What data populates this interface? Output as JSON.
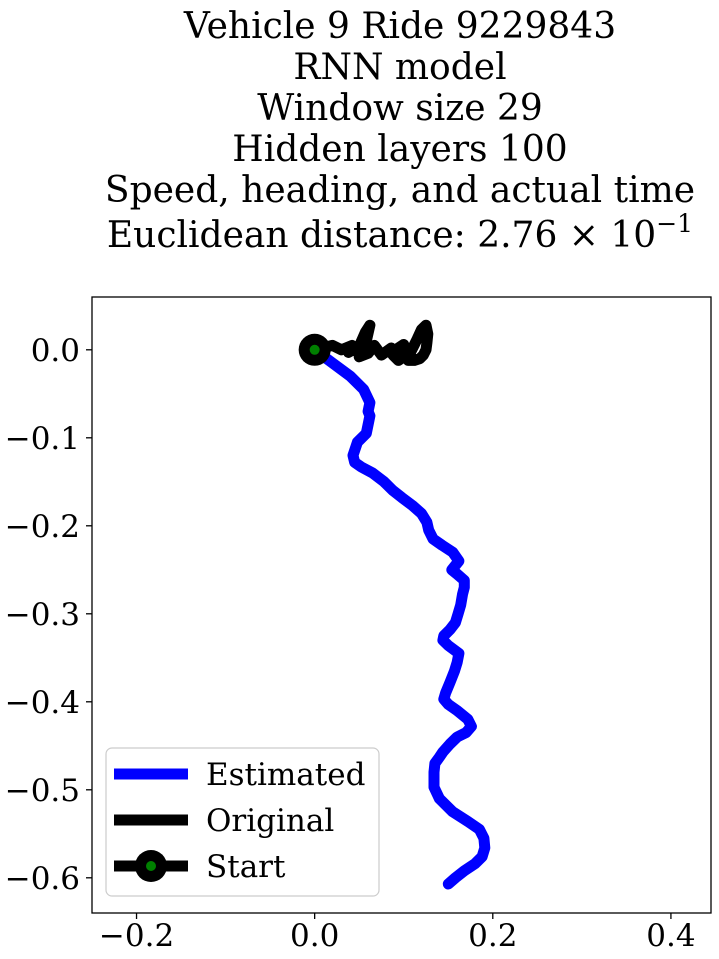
{
  "chart_data": {
    "type": "line",
    "title_lines": [
      "Vehicle 9 Ride 9229843",
      "RNN model",
      "Window size 29",
      "Hidden layers 100",
      "Speed, heading, and actual time"
    ],
    "title_distance": {
      "prefix": "Euclidean distance: 2.76 × 10",
      "exponent": "−1"
    },
    "xlabel": "",
    "ylabel": "",
    "xlim": [
      -0.25,
      0.445
    ],
    "ylim": [
      -0.64,
      0.06
    ],
    "xticks": [
      {
        "value": -0.2,
        "label": "−0.2"
      },
      {
        "value": 0.0,
        "label": "0.0"
      },
      {
        "value": 0.2,
        "label": "0.2"
      },
      {
        "value": 0.4,
        "label": "0.4"
      }
    ],
    "yticks": [
      {
        "value": 0.0,
        "label": "0.0"
      },
      {
        "value": -0.1,
        "label": "−0.1"
      },
      {
        "value": -0.2,
        "label": "−0.2"
      },
      {
        "value": -0.3,
        "label": "−0.3"
      },
      {
        "value": -0.4,
        "label": "−0.4"
      },
      {
        "value": -0.5,
        "label": "−0.5"
      },
      {
        "value": -0.6,
        "label": "−0.6"
      }
    ],
    "grid": false,
    "legend_position": "lower-left",
    "series": [
      {
        "name": "Estimated",
        "color": "#0000ff",
        "x": [
          0.0,
          0.02,
          0.04,
          0.055,
          0.062,
          0.06,
          0.062,
          0.06,
          0.058,
          0.048,
          0.043,
          0.045,
          0.052,
          0.065,
          0.078,
          0.088,
          0.098,
          0.11,
          0.12,
          0.126,
          0.128,
          0.133,
          0.143,
          0.155,
          0.162,
          0.154,
          0.16,
          0.168,
          0.168,
          0.166,
          0.164,
          0.161,
          0.158,
          0.152,
          0.145,
          0.144,
          0.15,
          0.162,
          0.16,
          0.157,
          0.152,
          0.147,
          0.145,
          0.15,
          0.16,
          0.172,
          0.176,
          0.17,
          0.16,
          0.152,
          0.144,
          0.14,
          0.135,
          0.134,
          0.134,
          0.14,
          0.155,
          0.172,
          0.185,
          0.19,
          0.191,
          0.188,
          0.18,
          0.168,
          0.158,
          0.15
        ],
        "y": [
          0.0,
          -0.015,
          -0.03,
          -0.045,
          -0.06,
          -0.07,
          -0.075,
          -0.085,
          -0.095,
          -0.105,
          -0.12,
          -0.128,
          -0.133,
          -0.14,
          -0.15,
          -0.16,
          -0.168,
          -0.177,
          -0.186,
          -0.196,
          -0.205,
          -0.215,
          -0.222,
          -0.23,
          -0.24,
          -0.25,
          -0.255,
          -0.262,
          -0.27,
          -0.278,
          -0.29,
          -0.3,
          -0.31,
          -0.318,
          -0.325,
          -0.33,
          -0.336,
          -0.345,
          -0.355,
          -0.365,
          -0.378,
          -0.39,
          -0.397,
          -0.403,
          -0.41,
          -0.42,
          -0.428,
          -0.435,
          -0.44,
          -0.448,
          -0.457,
          -0.463,
          -0.47,
          -0.48,
          -0.497,
          -0.51,
          -0.525,
          -0.536,
          -0.545,
          -0.555,
          -0.566,
          -0.576,
          -0.584,
          -0.592,
          -0.6,
          -0.607
        ]
      },
      {
        "name": "Original",
        "color": "#000000",
        "x": [
          0.0,
          0.02,
          0.03,
          0.042,
          0.038,
          0.05,
          0.057,
          0.062,
          0.058,
          0.054,
          0.05,
          0.06,
          0.067,
          0.075,
          0.086,
          0.096,
          0.102,
          0.1,
          0.094,
          0.088,
          0.094,
          0.1,
          0.108,
          0.115,
          0.12,
          0.125,
          0.127,
          0.126,
          0.125,
          0.122,
          0.118,
          0.112,
          0.105
        ],
        "y": [
          0.0,
          0.005,
          0.0,
          0.005,
          -0.003,
          0.004,
          0.02,
          0.028,
          0.01,
          0.0,
          -0.008,
          -0.004,
          0.005,
          -0.006,
          0.002,
          -0.008,
          0.0,
          0.006,
          0.002,
          -0.006,
          -0.012,
          -0.008,
          -0.002,
          0.012,
          0.023,
          0.028,
          0.018,
          0.008,
          0.0,
          -0.006,
          -0.01,
          -0.012,
          -0.012
        ]
      }
    ],
    "start": {
      "name": "Start",
      "x": 0.0,
      "y": 0.0,
      "outer_color": "#000000",
      "inner_color": "#008000"
    }
  }
}
